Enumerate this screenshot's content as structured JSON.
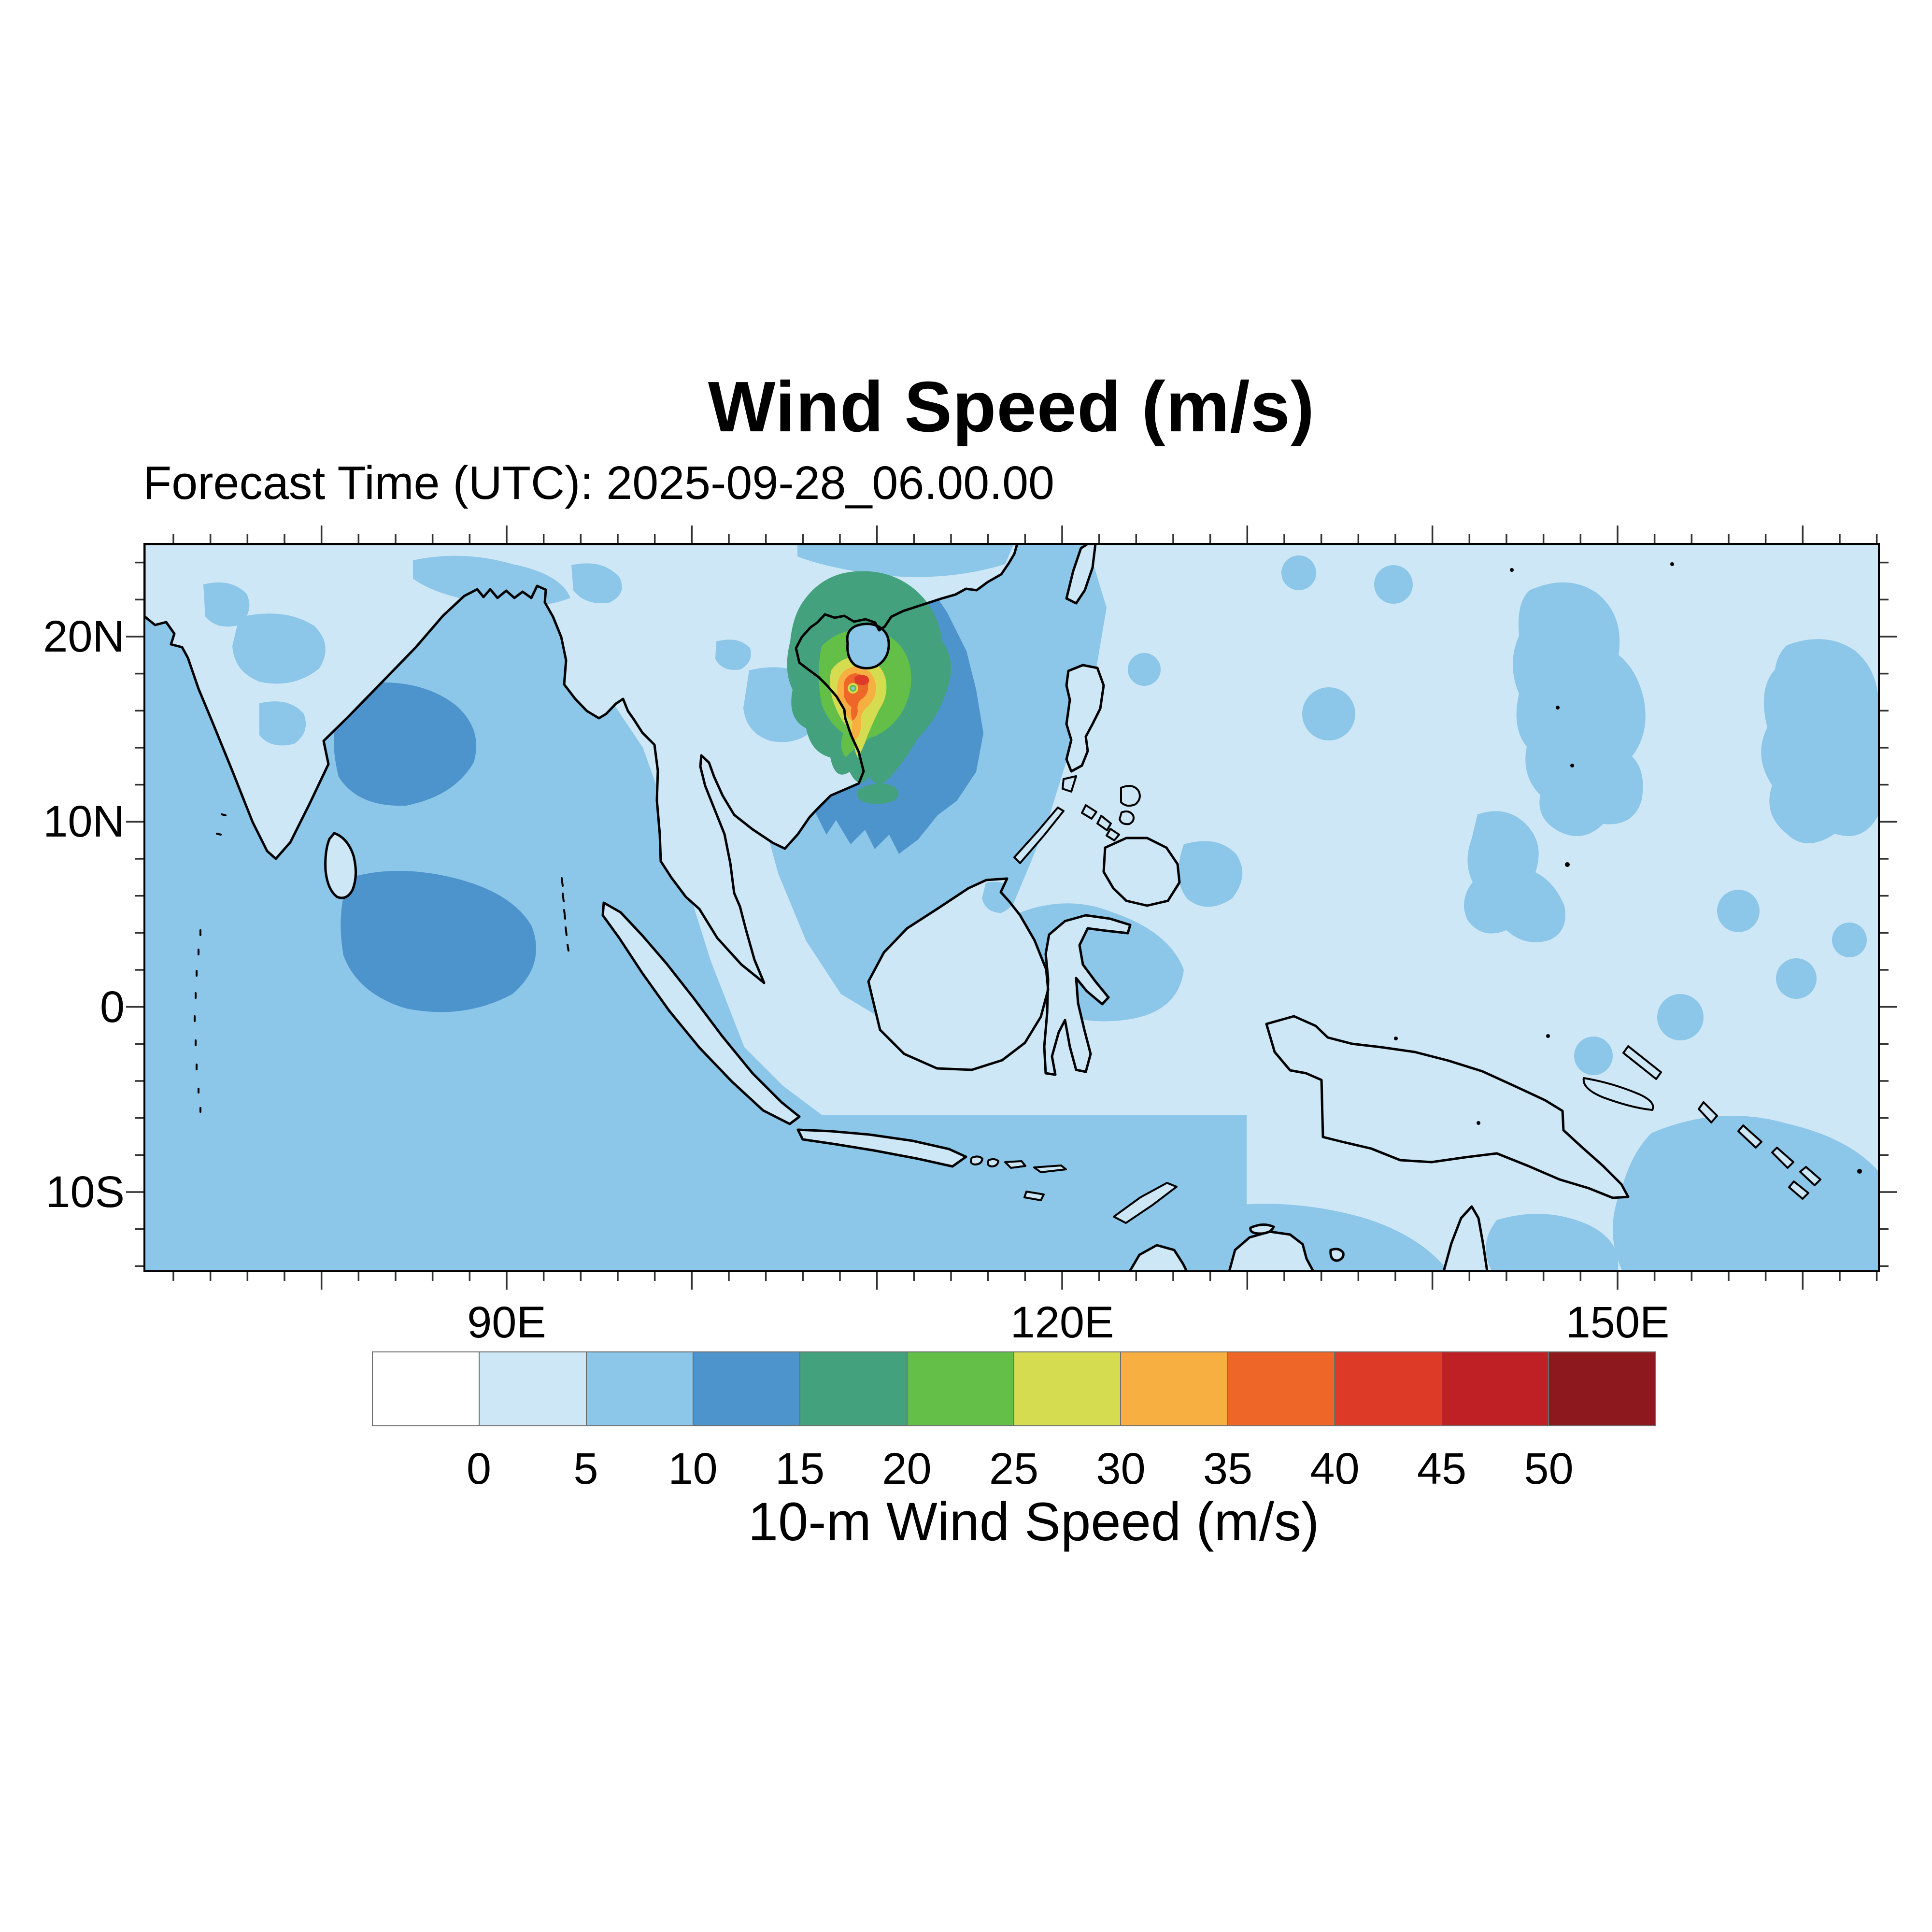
{
  "figure": {
    "title": "Wind Speed (m/s)",
    "forecast_time_label": "Forecast Time (UTC): 2025-09-28_06.00.00"
  },
  "map": {
    "y_axis_labels": [
      "20N",
      "10N",
      "0",
      "10S"
    ],
    "x_axis_labels": [
      "90E",
      "120E",
      "150E"
    ]
  },
  "colorbar": {
    "title": "10-m Wind Speed (m/s)",
    "tick_labels": [
      "0",
      "5",
      "10",
      "15",
      "20",
      "25",
      "30",
      "35",
      "40",
      "45",
      "50"
    ],
    "colors": [
      "#ffffff",
      "#cde7f6",
      "#8cc6e8",
      "#4d94cd",
      "#44a17e",
      "#63bf47",
      "#d6dc50",
      "#f8af42",
      "#ef6629",
      "#de3a28",
      "#bf2026",
      "#8d191e"
    ]
  },
  "chart_data": {
    "type": "heatmap",
    "title": "Wind Speed (m/s)",
    "subtitle": "Forecast Time (UTC): 2025-09-28_06.00.00",
    "colorbar_label": "10-m Wind Speed (m/s)",
    "variable": "10-m wind speed",
    "units": "m/s",
    "levels": [
      0,
      5,
      10,
      15,
      20,
      25,
      30,
      35,
      40,
      45,
      50
    ],
    "palette": [
      "#ffffff",
      "#cde7f6",
      "#8cc6e8",
      "#4d94cd",
      "#44a17e",
      "#63bf47",
      "#d6dc50",
      "#f8af42",
      "#ef6629",
      "#de3a28",
      "#bf2026",
      "#8d191e"
    ],
    "x_axis": {
      "tick_labels": [
        "90E",
        "120E",
        "150E"
      ],
      "minor_tick_interval_deg": 2,
      "approx_range": [
        "70E",
        "164E"
      ]
    },
    "y_axis": {
      "tick_labels": [
        "20N",
        "10N",
        "0",
        "10S"
      ],
      "minor_tick_interval_deg": 2,
      "approx_range": [
        "14S",
        "25N"
      ]
    },
    "legend_position": "bottom horizontal label bar",
    "grid": false,
    "features": [
      {
        "name": "tropical-cyclone",
        "approx_location": "Gulf of Tonkin near 108.5E 17.5N, just southwest of Hainan",
        "peak_band_m_s": "40-45",
        "eye_band_m_s": "5-10"
      },
      {
        "name": "enhanced-wind-regions-10-15",
        "regions": [
          "northern South China Sea",
          "southwest Bay of Bengal off India",
          "ocean south of Sri Lanka"
        ]
      },
      {
        "name": "background",
        "description": "mostly 0-10 m/s over the domain; land areas mostly 0-5 m/s"
      }
    ]
  }
}
